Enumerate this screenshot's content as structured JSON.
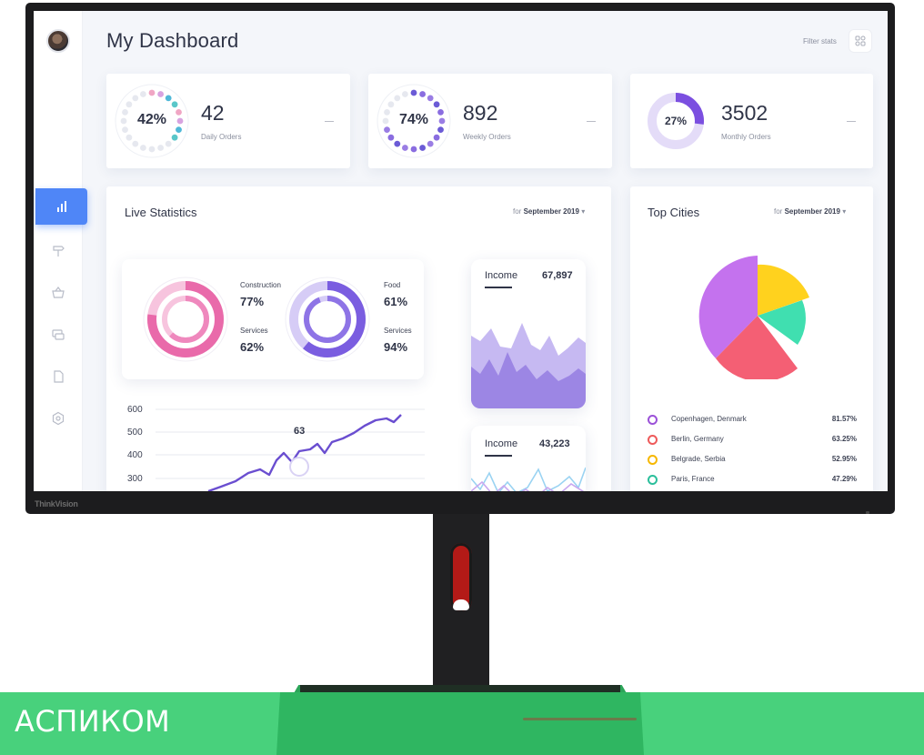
{
  "monitor": {
    "brand": "ThinkVision"
  },
  "app": {
    "title": "My Dashboard",
    "filter_label": "Filter stats"
  },
  "sidebar": {
    "items": [
      "chart-icon",
      "signpost-icon",
      "basket-icon",
      "screens-icon",
      "document-icon",
      "settings-icon"
    ],
    "active": 0
  },
  "stats": [
    {
      "percent": "42%",
      "percent_value": 42,
      "value": "42",
      "label": "Daily Orders",
      "color": "#4fb8d8"
    },
    {
      "percent": "74%",
      "percent_value": 74,
      "value": "892",
      "label": "Weekly Orders",
      "color": "#6b5bd6"
    },
    {
      "percent": "27%",
      "percent_value": 27,
      "value": "3502",
      "label": "Monthly Orders",
      "color": "#7b4fe0"
    }
  ],
  "live_statistics": {
    "title": "Live Statistics",
    "period_prefix": "for",
    "period": "September 2019",
    "donuts": [
      {
        "label_top": "Construction",
        "value_top": "77%",
        "label_bottom": "Services",
        "value_bottom": "62%",
        "color": "#e96aaa"
      },
      {
        "label_top": "Food",
        "value_top": "61%",
        "label_bottom": "Services",
        "value_bottom": "94%",
        "color": "#7a5de0"
      }
    ],
    "y_ticks": [
      "600",
      "500",
      "400",
      "300"
    ],
    "peak_label": "63"
  },
  "income_cards": [
    {
      "label": "Income",
      "value": "67,897"
    },
    {
      "label": "Income",
      "value": "43,223"
    }
  ],
  "top_cities": {
    "title": "Top Cities",
    "period_prefix": "for",
    "period": "September 2019",
    "cities": [
      {
        "name": "Copenhagen, Denmark",
        "pct": "81.57%",
        "color": "#9b51d8"
      },
      {
        "name": "Berlin, Germany",
        "pct": "63.25%",
        "color": "#ee5a5a"
      },
      {
        "name": "Belgrade, Serbia",
        "pct": "52.95%",
        "color": "#f6b700"
      },
      {
        "name": "Paris, France",
        "pct": "47.29%",
        "color": "#2bbf9b"
      }
    ]
  },
  "footer": {
    "brand_text": "АСПИКОМ",
    "band_color": "#48d17c"
  }
}
